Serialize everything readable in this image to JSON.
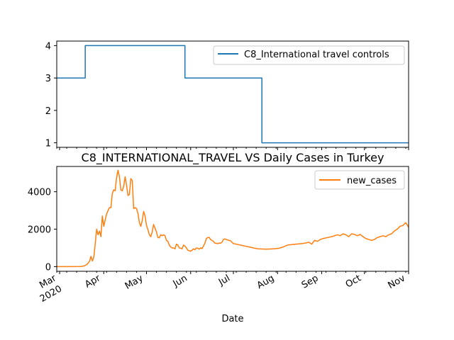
{
  "chart_data": [
    {
      "type": "line",
      "title": "",
      "xlabel": "",
      "ylabel": "",
      "xlim": [
        "2020-02-28",
        "2020-11-01"
      ],
      "ylim": [
        0.86,
        4.14
      ],
      "y_ticks": [
        1,
        2,
        3,
        4
      ],
      "legend": "upper right",
      "grid": false,
      "series": [
        {
          "name": "C8_International travel controls",
          "color": "#1f77b4",
          "points": [
            [
              "2020-02-28",
              3
            ],
            [
              "2020-03-19",
              3
            ],
            [
              "2020-03-19",
              4
            ],
            [
              "2020-05-28",
              4
            ],
            [
              "2020-05-28",
              3
            ],
            [
              "2020-07-21",
              3
            ],
            [
              "2020-07-21",
              1
            ],
            [
              "2020-11-01",
              1
            ]
          ]
        }
      ]
    },
    {
      "type": "line",
      "title": "C8_INTERNATIONAL_TRAVEL VS Daily Cases in Turkey",
      "xlabel": "Date",
      "ylabel": "",
      "xlim": [
        "2020-02-28",
        "2020-11-01"
      ],
      "ylim": [
        -250,
        5350
      ],
      "y_ticks": [
        0,
        2000,
        4000
      ],
      "x_ticks": [
        {
          "date": "2020-03-01",
          "label": "Mar",
          "sublabel": "2020"
        },
        {
          "date": "2020-04-01",
          "label": "Apr"
        },
        {
          "date": "2020-05-01",
          "label": "May"
        },
        {
          "date": "2020-06-01",
          "label": "Jun"
        },
        {
          "date": "2020-07-01",
          "label": "Jul"
        },
        {
          "date": "2020-08-01",
          "label": "Aug"
        },
        {
          "date": "2020-09-01",
          "label": "Sep"
        },
        {
          "date": "2020-10-01",
          "label": "Oct"
        },
        {
          "date": "2020-11-01",
          "label": "Nov"
        }
      ],
      "legend": "upper right",
      "grid": false,
      "series": [
        {
          "name": "new_cases",
          "color": "#ff7f0e",
          "points": [
            [
              "2020-02-28",
              0
            ],
            [
              "2020-03-10",
              0
            ],
            [
              "2020-03-16",
              5
            ],
            [
              "2020-03-18",
              30
            ],
            [
              "2020-03-20",
              100
            ],
            [
              "2020-03-22",
              280
            ],
            [
              "2020-03-23",
              550
            ],
            [
              "2020-03-24",
              300
            ],
            [
              "2020-03-25",
              500
            ],
            [
              "2020-03-26",
              1200
            ],
            [
              "2020-03-27",
              2000
            ],
            [
              "2020-03-28",
              1700
            ],
            [
              "2020-03-29",
              1900
            ],
            [
              "2020-03-30",
              1600
            ],
            [
              "2020-03-31",
              2700
            ],
            [
              "2020-04-01",
              2150
            ],
            [
              "2020-04-02",
              2500
            ],
            [
              "2020-04-03",
              2800
            ],
            [
              "2020-04-04",
              3000
            ],
            [
              "2020-04-05",
              3150
            ],
            [
              "2020-04-06",
              3150
            ],
            [
              "2020-04-07",
              3900
            ],
            [
              "2020-04-08",
              4100
            ],
            [
              "2020-04-09",
              4050
            ],
            [
              "2020-04-10",
              4750
            ],
            [
              "2020-04-11",
              5150
            ],
            [
              "2020-04-12",
              4800
            ],
            [
              "2020-04-13",
              4100
            ],
            [
              "2020-04-14",
              4050
            ],
            [
              "2020-04-15",
              4300
            ],
            [
              "2020-04-16",
              4800
            ],
            [
              "2020-04-17",
              4350
            ],
            [
              "2020-04-18",
              3800
            ],
            [
              "2020-04-19",
              3850
            ],
            [
              "2020-04-20",
              4700
            ],
            [
              "2020-04-21",
              4600
            ],
            [
              "2020-04-22",
              3100
            ],
            [
              "2020-04-23",
              3150
            ],
            [
              "2020-04-24",
              3100
            ],
            [
              "2020-04-25",
              2850
            ],
            [
              "2020-04-26",
              2350
            ],
            [
              "2020-04-27",
              2150
            ],
            [
              "2020-04-28",
              2450
            ],
            [
              "2020-04-29",
              2950
            ],
            [
              "2020-04-30",
              2700
            ],
            [
              "2020-05-01",
              2200
            ],
            [
              "2020-05-02",
              1980
            ],
            [
              "2020-05-03",
              1700
            ],
            [
              "2020-05-04",
              1600
            ],
            [
              "2020-05-05",
              1850
            ],
            [
              "2020-05-06",
              2250
            ],
            [
              "2020-05-07",
              2050
            ],
            [
              "2020-05-08",
              1850
            ],
            [
              "2020-05-09",
              1550
            ],
            [
              "2020-05-10",
              1540
            ],
            [
              "2020-05-11",
              1700
            ],
            [
              "2020-05-12",
              1650
            ],
            [
              "2020-05-13",
              1700
            ],
            [
              "2020-05-14",
              1650
            ],
            [
              "2020-05-15",
              1400
            ],
            [
              "2020-05-16",
              1350
            ],
            [
              "2020-05-17",
              1150
            ],
            [
              "2020-05-18",
              1050
            ],
            [
              "2020-05-19",
              1000
            ],
            [
              "2020-05-20",
              1000
            ],
            [
              "2020-05-21",
              950
            ],
            [
              "2020-05-22",
              1200
            ],
            [
              "2020-05-23",
              1150
            ],
            [
              "2020-05-24",
              1000
            ],
            [
              "2020-05-25",
              980
            ],
            [
              "2020-05-26",
              950
            ],
            [
              "2020-05-27",
              1150
            ],
            [
              "2020-05-28",
              1100
            ],
            [
              "2020-05-29",
              1000
            ],
            [
              "2020-05-30",
              880
            ],
            [
              "2020-05-31",
              850
            ],
            [
              "2020-06-01",
              820
            ],
            [
              "2020-06-02",
              880
            ],
            [
              "2020-06-03",
              950
            ],
            [
              "2020-06-04",
              900
            ],
            [
              "2020-06-05",
              1000
            ],
            [
              "2020-06-06",
              980
            ],
            [
              "2020-06-07",
              930
            ],
            [
              "2020-06-08",
              1000
            ],
            [
              "2020-06-09",
              960
            ],
            [
              "2020-06-10",
              1100
            ],
            [
              "2020-06-11",
              1250
            ],
            [
              "2020-06-12",
              1500
            ],
            [
              "2020-06-13",
              1550
            ],
            [
              "2020-06-14",
              1560
            ],
            [
              "2020-06-15",
              1450
            ],
            [
              "2020-06-16",
              1400
            ],
            [
              "2020-06-17",
              1350
            ],
            [
              "2020-06-18",
              1250
            ],
            [
              "2020-06-19",
              1250
            ],
            [
              "2020-06-20",
              1230
            ],
            [
              "2020-06-21",
              1260
            ],
            [
              "2020-06-22",
              1250
            ],
            [
              "2020-06-23",
              1300
            ],
            [
              "2020-06-24",
              1450
            ],
            [
              "2020-06-25",
              1480
            ],
            [
              "2020-06-26",
              1450
            ],
            [
              "2020-06-27",
              1420
            ],
            [
              "2020-06-28",
              1400
            ],
            [
              "2020-06-29",
              1380
            ],
            [
              "2020-06-30",
              1300
            ],
            [
              "2020-07-01",
              1230
            ],
            [
              "2020-07-03",
              1200
            ],
            [
              "2020-07-06",
              1150
            ],
            [
              "2020-07-09",
              1100
            ],
            [
              "2020-07-12",
              1050
            ],
            [
              "2020-07-15",
              1000
            ],
            [
              "2020-07-18",
              950
            ],
            [
              "2020-07-21",
              940
            ],
            [
              "2020-07-24",
              930
            ],
            [
              "2020-07-27",
              940
            ],
            [
              "2020-07-30",
              950
            ],
            [
              "2020-08-02",
              980
            ],
            [
              "2020-08-05",
              1050
            ],
            [
              "2020-08-08",
              1150
            ],
            [
              "2020-08-11",
              1180
            ],
            [
              "2020-08-14",
              1200
            ],
            [
              "2020-08-17",
              1220
            ],
            [
              "2020-08-20",
              1250
            ],
            [
              "2020-08-23",
              1300
            ],
            [
              "2020-08-25",
              1200
            ],
            [
              "2020-08-27",
              1400
            ],
            [
              "2020-08-29",
              1350
            ],
            [
              "2020-08-31",
              1450
            ],
            [
              "2020-09-02",
              1500
            ],
            [
              "2020-09-05",
              1550
            ],
            [
              "2020-09-08",
              1600
            ],
            [
              "2020-09-10",
              1650
            ],
            [
              "2020-09-12",
              1700
            ],
            [
              "2020-09-14",
              1650
            ],
            [
              "2020-09-16",
              1750
            ],
            [
              "2020-09-18",
              1700
            ],
            [
              "2020-09-20",
              1600
            ],
            [
              "2020-09-22",
              1750
            ],
            [
              "2020-09-24",
              1720
            ],
            [
              "2020-09-26",
              1650
            ],
            [
              "2020-09-28",
              1720
            ],
            [
              "2020-09-30",
              1600
            ],
            [
              "2020-10-02",
              1500
            ],
            [
              "2020-10-04",
              1450
            ],
            [
              "2020-10-06",
              1400
            ],
            [
              "2020-10-08",
              1450
            ],
            [
              "2020-10-10",
              1550
            ],
            [
              "2020-10-12",
              1600
            ],
            [
              "2020-10-14",
              1650
            ],
            [
              "2020-10-16",
              1600
            ],
            [
              "2020-10-18",
              1700
            ],
            [
              "2020-10-20",
              1750
            ],
            [
              "2020-10-22",
              1900
            ],
            [
              "2020-10-24",
              2000
            ],
            [
              "2020-10-26",
              2150
            ],
            [
              "2020-10-28",
              2200
            ],
            [
              "2020-10-30",
              2350
            ],
            [
              "2020-11-01",
              2100
            ]
          ]
        }
      ]
    }
  ]
}
